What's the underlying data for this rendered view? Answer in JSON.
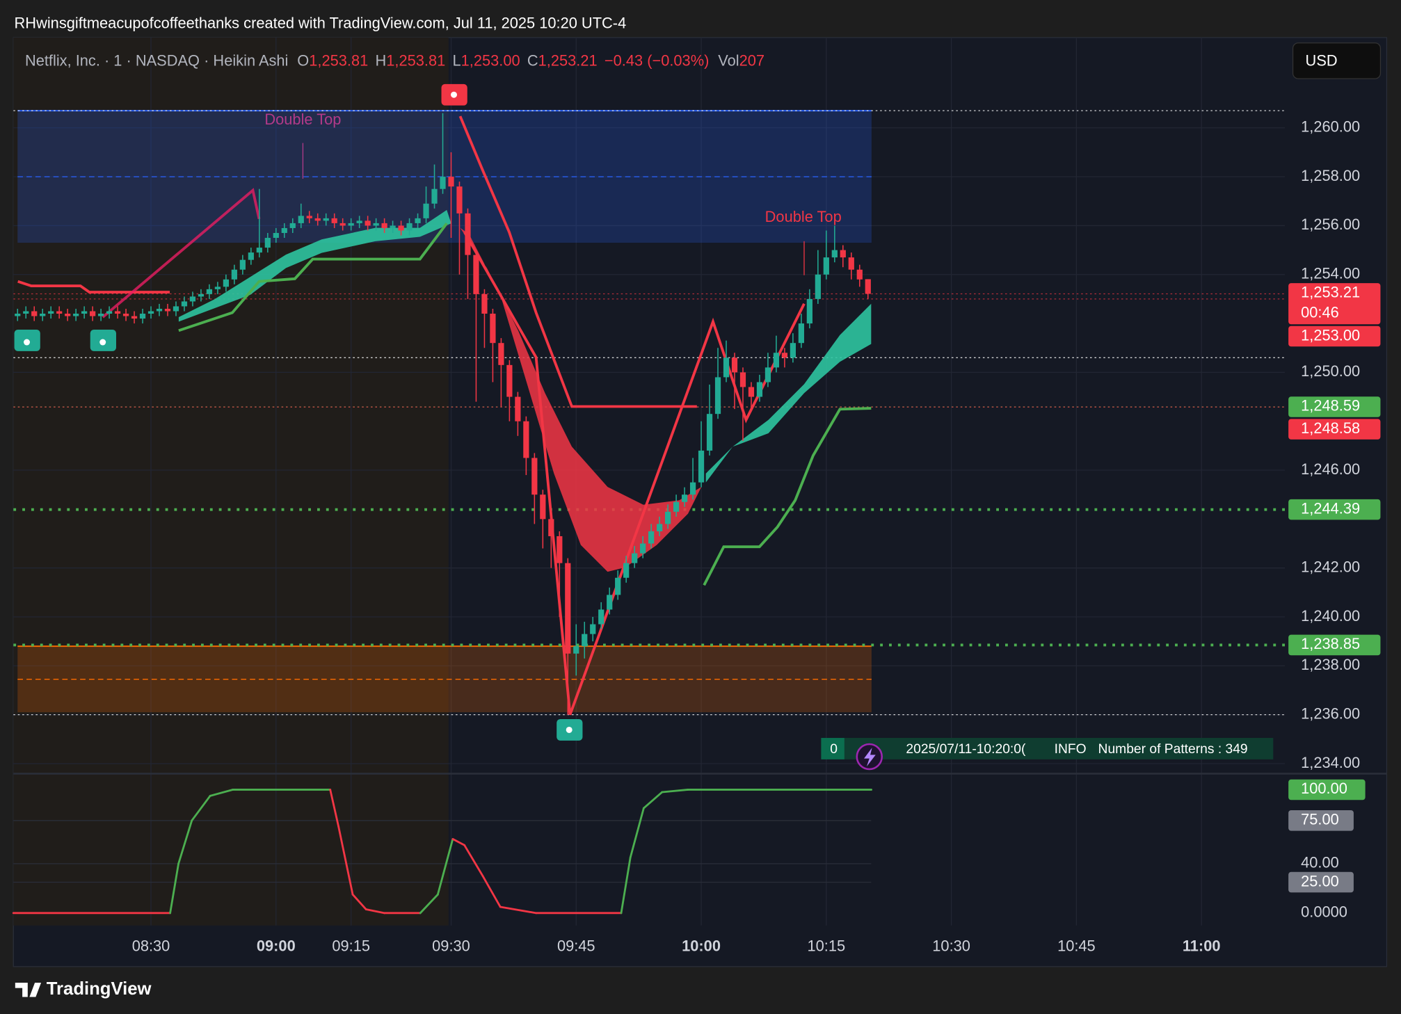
{
  "header": {
    "credit": "RHwinsgiftmeacupofcoffeethanks created with TradingView.com, Jul 11, 2025 10:20 UTC-4",
    "currency": "USD",
    "brand": "TradingView"
  },
  "chart_data": {
    "type": "candlestick",
    "symbol": "Netflix, Inc. · 1 · NASDAQ · Heikin Ashi",
    "legend": [
      {
        "key": "O",
        "text": "1,253.81"
      },
      {
        "key": "H",
        "text": "1,253.81"
      },
      {
        "key": "L",
        "text": "1,253.00"
      },
      {
        "key": "C",
        "text": "1,253.21"
      }
    ],
    "change": "−0.43 (−0.03%)",
    "volume": {
      "key": "Vol",
      "text": "207"
    },
    "annotations": [
      "Double Top",
      "Double Top"
    ],
    "colors": {
      "up": "#22ab94",
      "down": "#f23645"
    },
    "open": [
      1252.3,
      1252.4,
      1252.5,
      1252.3,
      1252.4,
      1252.5,
      1252.4,
      1252.3,
      1252.4,
      1252.5,
      1252.3,
      1252.4,
      1252.5,
      1252.4,
      1252.3,
      1252.2,
      1252.4,
      1252.5,
      1252.6,
      1252.5,
      1252.7,
      1252.9,
      1253.1,
      1253.2,
      1253.4,
      1253.5,
      1253.8,
      1254.2,
      1254.6,
      1254.9,
      1255.1,
      1255.5,
      1255.7,
      1255.9,
      1256.1,
      1256.4,
      1256.3,
      1256.2,
      1256.3,
      1256.1,
      1256.0,
      1256.1,
      1256.2,
      1256.0,
      1256.1,
      1255.9,
      1256.0,
      1255.8,
      1256.1,
      1256.3,
      1256.9,
      1257.5,
      1258.0,
      1257.6,
      1256.5,
      1254.8,
      1253.2,
      1252.4,
      1251.2,
      1250.3,
      1249.0,
      1248.0,
      1246.5,
      1245.0,
      1244.0,
      1243.3,
      1242.2,
      1238.5,
      1238.8,
      1239.3,
      1239.7,
      1240.3,
      1240.9,
      1241.6,
      1242.2,
      1242.6,
      1243.0,
      1243.5,
      1243.8,
      1244.3,
      1244.7,
      1245.0,
      1245.5,
      1246.8,
      1248.3,
      1249.8,
      1250.6,
      1250.0,
      1249.4,
      1249.0,
      1249.6,
      1250.2,
      1250.8,
      1250.6,
      1251.2,
      1252.0,
      1253.0,
      1254.0,
      1254.7,
      1255.0,
      1254.7,
      1254.2,
      1253.81
    ],
    "high": [
      1252.6,
      1252.7,
      1252.7,
      1252.6,
      1252.7,
      1252.7,
      1252.6,
      1252.6,
      1252.7,
      1252.7,
      1252.6,
      1252.7,
      1252.7,
      1252.6,
      1252.5,
      1252.6,
      1252.7,
      1252.8,
      1252.8,
      1252.9,
      1253.1,
      1253.3,
      1253.4,
      1253.6,
      1253.7,
      1254.0,
      1254.4,
      1254.8,
      1255.1,
      1257.5,
      1255.7,
      1255.9,
      1256.1,
      1256.3,
      1256.9,
      1256.6,
      1256.5,
      1256.5,
      1256.5,
      1256.3,
      1256.3,
      1256.4,
      1256.4,
      1256.3,
      1256.3,
      1256.2,
      1256.2,
      1256.3,
      1256.5,
      1257.6,
      1258.5,
      1260.6,
      1259.0,
      1257.8,
      1256.7,
      1255.0,
      1253.4,
      1252.6,
      1251.4,
      1250.5,
      1249.2,
      1248.2,
      1246.7,
      1245.2,
      1244.2,
      1243.5,
      1242.4,
      1239.7,
      1239.8,
      1240.0,
      1240.6,
      1241.2,
      1241.9,
      1242.5,
      1242.9,
      1243.3,
      1243.8,
      1244.1,
      1244.6,
      1245.0,
      1245.3,
      1246.5,
      1248.0,
      1249.5,
      1251.0,
      1251.3,
      1250.8,
      1250.2,
      1249.6,
      1249.9,
      1250.8,
      1251.5,
      1251.0,
      1251.6,
      1252.4,
      1253.4,
      1255.0,
      1255.8,
      1256.0,
      1255.2,
      1254.9,
      1254.4,
      1253.81
    ],
    "low": [
      1252.1,
      1252.2,
      1252.1,
      1252.1,
      1252.2,
      1252.2,
      1252.1,
      1252.1,
      1252.2,
      1252.1,
      1252.1,
      1252.2,
      1252.2,
      1252.1,
      1252.0,
      1252.0,
      1252.2,
      1252.3,
      1252.3,
      1252.3,
      1252.5,
      1252.7,
      1252.9,
      1253.0,
      1253.2,
      1253.3,
      1253.6,
      1254.0,
      1254.4,
      1254.7,
      1254.9,
      1255.3,
      1255.5,
      1255.7,
      1255.9,
      1256.1,
      1256.0,
      1256.0,
      1255.9,
      1255.8,
      1255.8,
      1255.9,
      1255.8,
      1255.8,
      1255.7,
      1255.7,
      1255.6,
      1255.6,
      1255.9,
      1256.1,
      1256.7,
      1257.3,
      1255.5,
      1254.0,
      1253.0,
      1248.8,
      1251.0,
      1249.6,
      1248.6,
      1248.0,
      1247.4,
      1245.8,
      1243.8,
      1242.8,
      1242.0,
      1240.0,
      1236.0,
      1237.6,
      1238.3,
      1239.0,
      1239.5,
      1240.1,
      1240.7,
      1241.4,
      1242.0,
      1242.4,
      1242.8,
      1243.3,
      1243.6,
      1244.1,
      1244.5,
      1244.8,
      1245.3,
      1246.6,
      1248.1,
      1249.6,
      1248.5,
      1247.2,
      1248.4,
      1248.8,
      1249.4,
      1250.0,
      1250.2,
      1250.4,
      1251.0,
      1251.8,
      1252.8,
      1253.8,
      1254.5,
      1254.3,
      1253.8,
      1253.5,
      1253.0
    ],
    "close": [
      1252.4,
      1252.5,
      1252.3,
      1252.4,
      1252.5,
      1252.4,
      1252.3,
      1252.4,
      1252.5,
      1252.3,
      1252.4,
      1252.5,
      1252.4,
      1252.3,
      1252.2,
      1252.4,
      1252.5,
      1252.6,
      1252.5,
      1252.7,
      1252.9,
      1253.1,
      1253.2,
      1253.4,
      1253.5,
      1253.8,
      1254.2,
      1254.6,
      1254.9,
      1255.1,
      1255.5,
      1255.7,
      1255.9,
      1256.1,
      1256.4,
      1256.3,
      1256.2,
      1256.3,
      1256.1,
      1256.0,
      1256.1,
      1256.2,
      1256.0,
      1256.1,
      1255.9,
      1256.0,
      1255.8,
      1256.1,
      1256.3,
      1256.9,
      1257.5,
      1258.0,
      1257.6,
      1256.5,
      1254.8,
      1253.2,
      1252.4,
      1251.2,
      1250.3,
      1249.0,
      1248.0,
      1246.5,
      1245.0,
      1244.0,
      1243.3,
      1242.2,
      1238.5,
      1238.8,
      1239.3,
      1239.7,
      1240.3,
      1240.9,
      1241.6,
      1242.2,
      1242.6,
      1243.0,
      1243.5,
      1243.8,
      1244.3,
      1244.7,
      1245.0,
      1245.5,
      1246.8,
      1248.3,
      1249.8,
      1250.6,
      1250.0,
      1249.4,
      1249.0,
      1249.6,
      1250.2,
      1250.8,
      1250.6,
      1251.2,
      1252.0,
      1253.0,
      1254.0,
      1254.7,
      1255.0,
      1254.7,
      1254.2,
      1253.8,
      1253.21
    ],
    "xlim": [
      -0.5,
      152
    ],
    "xticks": [
      {
        "value": 16,
        "label": "08:30"
      },
      {
        "value": 31,
        "label": "09:00"
      },
      {
        "value": 40,
        "label": "09:15"
      },
      {
        "value": 52,
        "label": "09:30"
      },
      {
        "value": 67,
        "label": "09:45"
      },
      {
        "value": 82,
        "label": "10:00"
      },
      {
        "value": 97,
        "label": "10:15"
      },
      {
        "value": 112,
        "label": "10:30"
      },
      {
        "value": 127,
        "label": "10:45"
      },
      {
        "value": 142,
        "label": "11:00"
      }
    ],
    "ylim": [
      1233.59,
      1263.69
    ],
    "yticks": [
      {
        "value": 1234,
        "label": "1,234.00"
      },
      {
        "value": 1236,
        "label": "1,236.00"
      },
      {
        "value": 1238,
        "label": "1,238.00"
      },
      {
        "value": 1240,
        "label": "1,240.00"
      },
      {
        "value": 1242,
        "label": "1,242.00"
      },
      {
        "value": 1246,
        "label": "1,246.00"
      },
      {
        "value": 1250,
        "label": "1,250.00"
      },
      {
        "value": 1254,
        "label": "1,254.00"
      },
      {
        "value": 1256,
        "label": "1,256.00"
      },
      {
        "value": 1258,
        "label": "1,258.00"
      },
      {
        "value": 1260,
        "label": "1,260.00"
      }
    ],
    "grid": true,
    "price_labels": [
      {
        "value": 1253.21,
        "label": "1,253.21",
        "countdown": "00:46",
        "color": "#f23645"
      },
      {
        "value": 1253.0,
        "label": "1,253.00",
        "color": "#f23645"
      },
      {
        "value": 1248.59,
        "label": "1,248.59",
        "color": "#4caf50"
      },
      {
        "value": 1248.58,
        "label": "1,248.58",
        "color": "#f23645"
      },
      {
        "value": 1244.39,
        "label": "1,244.39",
        "color": "#4caf50",
        "line": true
      },
      {
        "value": 1238.85,
        "label": "1,238.85",
        "color": "#4caf50",
        "line": true
      }
    ],
    "levels": [
      {
        "value": 1260.7,
        "color": "#ffffff"
      },
      {
        "value": 1250.6,
        "color": "#ffffff"
      },
      {
        "value": 1236.0,
        "color": "#ffffff"
      }
    ],
    "zones": [
      {
        "top": 1260.7,
        "bottom": 1255.3,
        "from": 0,
        "to": 102,
        "color": "#2962ff"
      },
      {
        "top": 1238.8,
        "bottom": 1236.1,
        "from": 0,
        "to": 102,
        "color": "#ff6d00"
      }
    ],
    "info": [
      "0",
      "2025/07/11-10:20:0(",
      "INFO",
      "Number of Patterns : 349"
    ],
    "oscillator": {
      "x": [
        -0.5,
        18.3,
        19.3,
        20.9,
        23.1,
        25.8,
        37.5,
        38.5,
        40.2,
        41.8,
        44,
        48.3,
        50.4,
        52.2,
        53.6,
        55.8,
        57.9,
        62.2,
        72.4,
        73.5,
        75.1,
        77.3,
        80.4,
        102.4
      ],
      "values": [
        0,
        0,
        40,
        75,
        95,
        100,
        100,
        70,
        15,
        3,
        0,
        0,
        15,
        60,
        55,
        30,
        5,
        0,
        0,
        45,
        85,
        98,
        100,
        100
      ],
      "ylim": [
        -10.1,
        113.0
      ],
      "yticks": [
        {
          "value": 100,
          "label": "100.00",
          "color": "#4caf50"
        },
        {
          "value": 75,
          "label": "75.00",
          "color": "#787b86"
        },
        {
          "value": 40,
          "label": "40.00"
        },
        {
          "value": 25,
          "label": "25.00",
          "color": "#787b86"
        },
        {
          "value": 0,
          "label": "0.0000"
        }
      ],
      "colors": {
        "rise": "#4caf50",
        "fall": "#f23645"
      }
    }
  }
}
